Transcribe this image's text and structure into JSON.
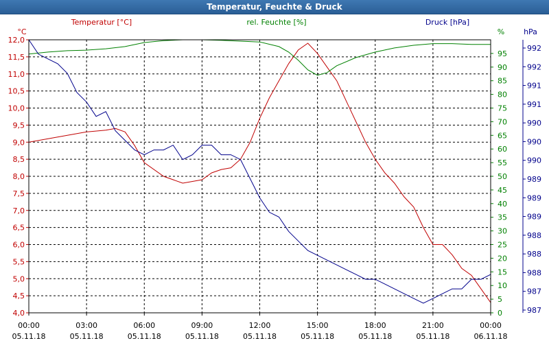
{
  "window": {
    "title": "Temperatur, Feuchte & Druck"
  },
  "chart_data": {
    "type": "line",
    "title": "Temperatur, Feuchte & Druck",
    "colors": {
      "temperature": "#c00000",
      "humidity": "#008000",
      "pressure": "#00008b",
      "grid": "#000000"
    },
    "axes": {
      "temperature": {
        "header": "Temperatur [°C]",
        "unit": "°C",
        "range": [
          4.0,
          12.0
        ],
        "ticks": [
          "4,0",
          "4,5",
          "5,0",
          "5,5",
          "6,0",
          "6,5",
          "7,0",
          "7,5",
          "8,0",
          "8,5",
          "9,0",
          "9,5",
          "10,0",
          "10,5",
          "11,0",
          "11,5",
          "12,0"
        ]
      },
      "humidity": {
        "header": "rel. Feuchte [%]",
        "unit": "%",
        "range": [
          0,
          100
        ],
        "ticks": [
          "0",
          "5",
          "10",
          "15",
          "20",
          "25",
          "30",
          "35",
          "40",
          "45",
          "50",
          "55",
          "60",
          "65",
          "70",
          "75",
          "80",
          "85",
          "90",
          "95"
        ]
      },
      "pressure": {
        "header": "Druck [hPa]",
        "unit": "hPa",
        "range": [
          986.8,
          992.5
        ],
        "ticks": [
          "987",
          "987",
          "988",
          "988",
          "988",
          "989",
          "989",
          "989",
          "990",
          "990",
          "990",
          "991",
          "991",
          "992",
          "992"
        ]
      }
    },
    "x_hours": [
      0,
      24
    ],
    "x_ticks": [
      {
        "time": "00:00",
        "date": "05.11.18"
      },
      {
        "time": "03:00",
        "date": "05.11.18"
      },
      {
        "time": "06:00",
        "date": "05.11.18"
      },
      {
        "time": "09:00",
        "date": "05.11.18"
      },
      {
        "time": "12:00",
        "date": "05.11.18"
      },
      {
        "time": "15:00",
        "date": "05.11.18"
      },
      {
        "time": "18:00",
        "date": "05.11.18"
      },
      {
        "time": "21:00",
        "date": "05.11.18"
      },
      {
        "time": "00:00",
        "date": "06.11.18"
      }
    ],
    "series": [
      {
        "name": "Temperatur [°C]",
        "axis": "temperature",
        "x": [
          0,
          1,
          2,
          3,
          4,
          4.5,
          5,
          5.5,
          6,
          7,
          8,
          8.5,
          9,
          9.5,
          10,
          10.5,
          11,
          11.5,
          12,
          12.5,
          13,
          13.5,
          14,
          14.5,
          15,
          15.5,
          16,
          16.5,
          17,
          17.5,
          18,
          18.5,
          19,
          19.5,
          20,
          20.5,
          21,
          21.5,
          22,
          22.5,
          23,
          23.5,
          24
        ],
        "values": [
          9.0,
          9.1,
          9.2,
          9.3,
          9.35,
          9.4,
          9.3,
          8.9,
          8.4,
          8.0,
          7.8,
          7.85,
          7.9,
          8.1,
          8.2,
          8.25,
          8.5,
          9.0,
          9.7,
          10.3,
          10.8,
          11.3,
          11.7,
          11.9,
          11.6,
          11.2,
          10.8,
          10.2,
          9.6,
          9.0,
          8.5,
          8.1,
          7.8,
          7.4,
          7.1,
          6.5,
          6.0,
          6.0,
          5.7,
          5.3,
          5.1,
          4.7,
          4.3
        ]
      },
      {
        "name": "rel. Feuchte [%]",
        "axis": "humidity",
        "x": [
          0,
          1,
          2,
          3,
          4,
          5,
          6,
          7,
          8,
          9,
          10,
          11,
          12,
          13,
          13.5,
          14,
          14.5,
          15,
          15.5,
          16,
          17,
          18,
          19,
          20,
          21,
          22,
          23,
          24
        ],
        "values": [
          94.8,
          95.5,
          96.0,
          96.2,
          96.7,
          97.5,
          99.0,
          99.7,
          100,
          100,
          99.8,
          99.5,
          99.2,
          97.5,
          95.5,
          92.5,
          89.0,
          87.0,
          88.0,
          90.5,
          93.5,
          95.5,
          97.0,
          98.0,
          98.6,
          98.6,
          98.3,
          98.3
        ]
      },
      {
        "name": "Druck [hPa]",
        "axis": "pressure",
        "x": [
          0,
          0.5,
          1,
          1.5,
          2,
          2.5,
          3,
          3.5,
          4,
          4.5,
          5,
          5.5,
          6,
          6.5,
          7,
          7.5,
          8,
          8.5,
          9,
          9.5,
          10,
          10.5,
          11,
          11.5,
          12,
          12.5,
          13,
          13.5,
          14,
          14.5,
          15,
          15.5,
          16,
          16.5,
          17,
          17.5,
          18,
          18.5,
          19,
          19.5,
          20,
          20.5,
          21,
          21.5,
          22,
          22.5,
          23,
          23.5,
          24
        ],
        "values": [
          992.5,
          992.2,
          992.1,
          992.0,
          991.8,
          991.4,
          991.2,
          990.9,
          991.0,
          990.6,
          990.4,
          990.2,
          990.1,
          990.2,
          990.2,
          990.3,
          990.0,
          990.1,
          990.3,
          990.3,
          990.1,
          990.1,
          990.0,
          989.6,
          989.2,
          988.9,
          988.8,
          988.5,
          988.3,
          988.1,
          988.0,
          987.9,
          987.8,
          987.7,
          987.6,
          987.5,
          987.5,
          987.4,
          987.3,
          987.2,
          987.1,
          987.0,
          987.1,
          987.2,
          987.3,
          987.3,
          987.5,
          987.5,
          987.6
        ]
      }
    ]
  }
}
